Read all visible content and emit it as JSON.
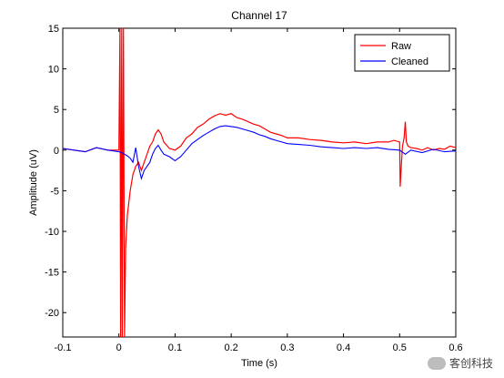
{
  "chart_data": {
    "type": "line",
    "title": "Channel 17",
    "xlabel": "Time (s)",
    "ylabel": "Amplitude (uV)",
    "xlim": [
      -0.1,
      0.6
    ],
    "ylim": [
      -23,
      15
    ],
    "xticks": [
      -0.1,
      0,
      0.1,
      0.2,
      0.3,
      0.4,
      0.5,
      0.6
    ],
    "xtick_labels": [
      "-0.1",
      "0",
      "0.1",
      "0.2",
      "0.3",
      "0.4",
      "0.5",
      "0.6"
    ],
    "yticks": [
      15,
      10,
      5,
      0,
      -5,
      -10,
      -15,
      -20
    ],
    "ytick_labels": [
      "15",
      "10",
      "5",
      "0",
      "-5",
      "-10",
      "-15",
      "-20"
    ],
    "grid": false,
    "legend": {
      "position": "top-right"
    },
    "series": [
      {
        "name": "Raw",
        "color": "#ff0000",
        "x": [
          -0.1,
          -0.08,
          -0.06,
          -0.04,
          -0.02,
          0.0,
          0.002,
          0.003,
          0.005,
          0.006,
          0.008,
          0.01,
          0.012,
          0.015,
          0.02,
          0.025,
          0.03,
          0.035,
          0.04,
          0.045,
          0.05,
          0.055,
          0.06,
          0.065,
          0.07,
          0.075,
          0.08,
          0.09,
          0.1,
          0.11,
          0.12,
          0.13,
          0.14,
          0.15,
          0.16,
          0.17,
          0.18,
          0.19,
          0.2,
          0.21,
          0.22,
          0.23,
          0.24,
          0.25,
          0.26,
          0.27,
          0.28,
          0.29,
          0.3,
          0.32,
          0.34,
          0.36,
          0.38,
          0.4,
          0.42,
          0.44,
          0.46,
          0.48,
          0.49,
          0.5,
          0.501,
          0.503,
          0.505,
          0.508,
          0.51,
          0.512,
          0.515,
          0.52,
          0.53,
          0.54,
          0.55,
          0.56,
          0.57,
          0.58,
          0.59,
          0.6
        ],
        "y": [
          0.2,
          0.0,
          -0.2,
          0.3,
          0.0,
          0.0,
          15,
          -23,
          15,
          -23,
          15,
          -23,
          -12,
          -8,
          -5,
          -3,
          -2,
          -1.5,
          -2.5,
          -1.5,
          -0.5,
          0.5,
          1.0,
          2.0,
          2.5,
          2.0,
          1.0,
          0.2,
          0.0,
          0.5,
          1.5,
          2.0,
          2.8,
          3.2,
          3.8,
          4.2,
          4.5,
          4.3,
          4.5,
          4.0,
          3.8,
          3.5,
          3.2,
          3.0,
          2.6,
          2.2,
          2.0,
          1.8,
          1.5,
          1.5,
          1.3,
          1.2,
          1.0,
          0.9,
          1.0,
          0.8,
          1.0,
          1.0,
          1.2,
          1.0,
          -4.5,
          -2.0,
          0.5,
          1.5,
          3.5,
          1.0,
          0.5,
          0.3,
          0.2,
          0.0,
          0.3,
          0.0,
          0.2,
          0.1,
          0.5,
          0.3
        ]
      },
      {
        "name": "Cleaned",
        "color": "#0000ff",
        "x": [
          -0.1,
          -0.08,
          -0.06,
          -0.04,
          -0.02,
          0.0,
          0.005,
          0.01,
          0.015,
          0.02,
          0.025,
          0.03,
          0.035,
          0.04,
          0.045,
          0.05,
          0.055,
          0.06,
          0.065,
          0.07,
          0.075,
          0.08,
          0.09,
          0.1,
          0.11,
          0.12,
          0.13,
          0.14,
          0.15,
          0.16,
          0.17,
          0.18,
          0.19,
          0.2,
          0.21,
          0.22,
          0.23,
          0.24,
          0.25,
          0.26,
          0.27,
          0.28,
          0.29,
          0.3,
          0.32,
          0.34,
          0.36,
          0.38,
          0.4,
          0.42,
          0.44,
          0.46,
          0.48,
          0.5,
          0.51,
          0.52,
          0.54,
          0.56,
          0.58,
          0.6
        ],
        "y": [
          0.2,
          0.0,
          -0.2,
          0.3,
          0.0,
          -0.2,
          -0.3,
          -0.5,
          -0.7,
          -1.0,
          -1.5,
          0.3,
          -2.0,
          -3.5,
          -2.5,
          -2.0,
          -1.5,
          -0.5,
          0.2,
          0.6,
          0.0,
          -0.5,
          -0.8,
          -1.3,
          -0.8,
          0.0,
          0.8,
          1.3,
          1.8,
          2.2,
          2.6,
          2.9,
          3.0,
          2.9,
          2.8,
          2.6,
          2.4,
          2.2,
          1.9,
          1.7,
          1.4,
          1.2,
          1.0,
          0.8,
          0.7,
          0.6,
          0.4,
          0.3,
          0.2,
          0.3,
          0.2,
          0.3,
          0.1,
          0.0,
          -0.5,
          0.0,
          -0.3,
          0.1,
          -0.2,
          -0.1
        ]
      }
    ]
  },
  "watermark": {
    "text": "客创科技"
  }
}
